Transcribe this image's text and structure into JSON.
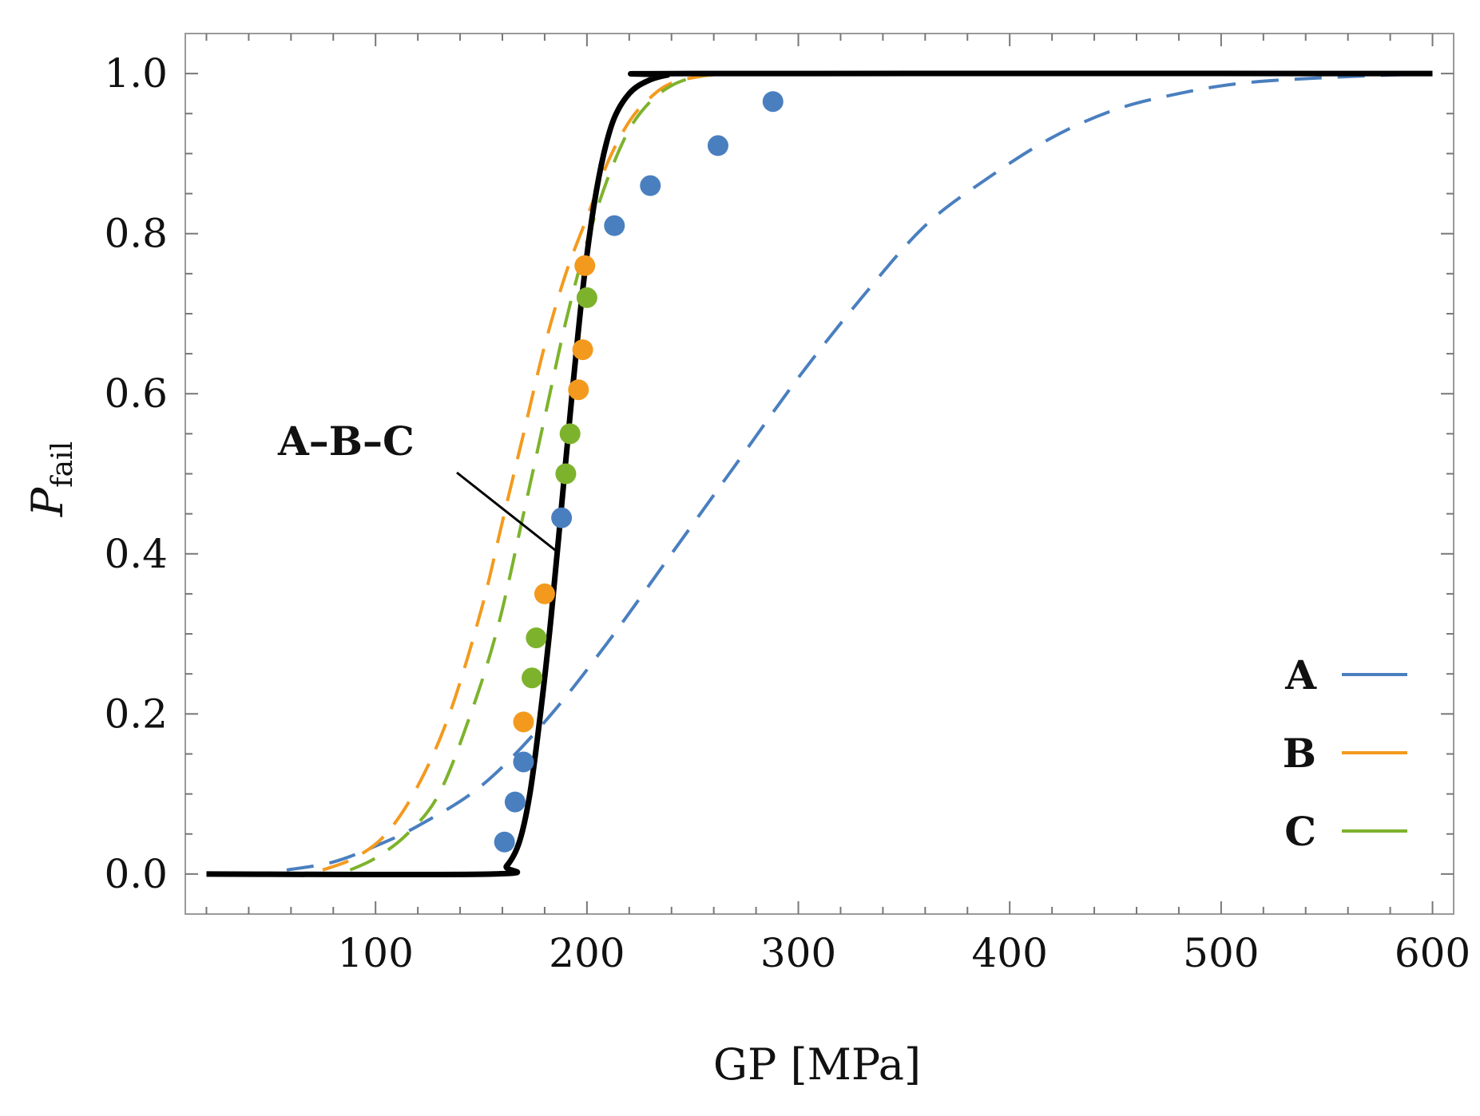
{
  "chart_data": {
    "type": "line",
    "xlabel": "GP [MPa]",
    "ylabel": "P",
    "ylabel_subscript": "fail",
    "xlim": [
      10,
      610
    ],
    "ylim": [
      -0.05,
      1.05
    ],
    "x_ticks": [
      100,
      200,
      300,
      400,
      500,
      600
    ],
    "x_tick_labels": [
      "100",
      "200",
      "300",
      "400",
      "500",
      "600"
    ],
    "y_ticks": [
      0.0,
      0.2,
      0.4,
      0.6,
      0.8,
      1.0
    ],
    "y_tick_labels": [
      "0.0",
      "0.2",
      "0.4",
      "0.6",
      "0.8",
      "1.0"
    ],
    "grid": false,
    "legend_position": "bottom-right",
    "annotation": "A–B–C",
    "series": [
      {
        "name": "A",
        "kind": "dashed-fit",
        "color": "#4a7fbf",
        "points": [
          [
            58,
            0.005
          ],
          [
            80,
            0.015
          ],
          [
            100,
            0.035
          ],
          [
            120,
            0.06
          ],
          [
            150,
            0.11
          ],
          [
            180,
            0.19
          ],
          [
            210,
            0.29
          ],
          [
            240,
            0.4
          ],
          [
            270,
            0.51
          ],
          [
            300,
            0.62
          ],
          [
            330,
            0.72
          ],
          [
            360,
            0.81
          ],
          [
            390,
            0.87
          ],
          [
            420,
            0.92
          ],
          [
            450,
            0.955
          ],
          [
            480,
            0.975
          ],
          [
            510,
            0.988
          ],
          [
            550,
            0.995
          ],
          [
            600,
            1.0
          ]
        ]
      },
      {
        "name": "B",
        "kind": "dashed-fit",
        "color": "#f39a1e",
        "points": [
          [
            75,
            0.005
          ],
          [
            90,
            0.02
          ],
          [
            105,
            0.05
          ],
          [
            120,
            0.11
          ],
          [
            135,
            0.2
          ],
          [
            150,
            0.33
          ],
          [
            160,
            0.44
          ],
          [
            170,
            0.55
          ],
          [
            180,
            0.66
          ],
          [
            190,
            0.75
          ],
          [
            200,
            0.82
          ],
          [
            210,
            0.89
          ],
          [
            220,
            0.94
          ],
          [
            230,
            0.97
          ],
          [
            240,
            0.988
          ],
          [
            255,
            0.997
          ],
          [
            270,
            1.0
          ]
        ]
      },
      {
        "name": "C",
        "kind": "dashed-fit",
        "color": "#7db32c",
        "points": [
          [
            88,
            0.005
          ],
          [
            100,
            0.02
          ],
          [
            115,
            0.05
          ],
          [
            130,
            0.1
          ],
          [
            145,
            0.2
          ],
          [
            158,
            0.31
          ],
          [
            170,
            0.45
          ],
          [
            180,
            0.57
          ],
          [
            190,
            0.69
          ],
          [
            200,
            0.79
          ],
          [
            210,
            0.87
          ],
          [
            220,
            0.93
          ],
          [
            230,
            0.965
          ],
          [
            240,
            0.985
          ],
          [
            250,
            0.995
          ],
          [
            260,
            1.0
          ]
        ]
      },
      {
        "name": "A–B–C",
        "kind": "solid-fit",
        "color": "#000000",
        "points": [
          [
            20,
            0.0
          ],
          [
            155,
            0.0
          ],
          [
            162,
            0.01
          ],
          [
            168,
            0.04
          ],
          [
            173,
            0.1
          ],
          [
            178,
            0.2
          ],
          [
            183,
            0.32
          ],
          [
            188,
            0.46
          ],
          [
            193,
            0.6
          ],
          [
            198,
            0.73
          ],
          [
            203,
            0.83
          ],
          [
            208,
            0.9
          ],
          [
            213,
            0.945
          ],
          [
            220,
            0.975
          ],
          [
            228,
            0.99
          ],
          [
            238,
            0.998
          ],
          [
            250,
            1.0
          ],
          [
            600,
            1.0
          ]
        ]
      }
    ],
    "data_points": [
      {
        "name": "A",
        "color": "#4a7fbf",
        "points": [
          [
            161,
            0.04
          ],
          [
            166,
            0.09
          ],
          [
            170,
            0.14
          ],
          [
            188,
            0.445
          ],
          [
            213,
            0.81
          ],
          [
            230,
            0.86
          ],
          [
            262,
            0.91
          ],
          [
            288,
            0.965
          ]
        ]
      },
      {
        "name": "B",
        "color": "#f39a1e",
        "points": [
          [
            170,
            0.19
          ],
          [
            180,
            0.35
          ],
          [
            196,
            0.605
          ],
          [
            198,
            0.655
          ],
          [
            199,
            0.76
          ]
        ]
      },
      {
        "name": "C",
        "color": "#7db32c",
        "points": [
          [
            174,
            0.245
          ],
          [
            176,
            0.295
          ],
          [
            190,
            0.5
          ],
          [
            192,
            0.55
          ],
          [
            200,
            0.72
          ]
        ]
      }
    ],
    "legend": [
      {
        "label": "A",
        "color": "#4a7fbf"
      },
      {
        "label": "B",
        "color": "#f39a1e"
      },
      {
        "label": "C",
        "color": "#7db32c"
      }
    ]
  }
}
